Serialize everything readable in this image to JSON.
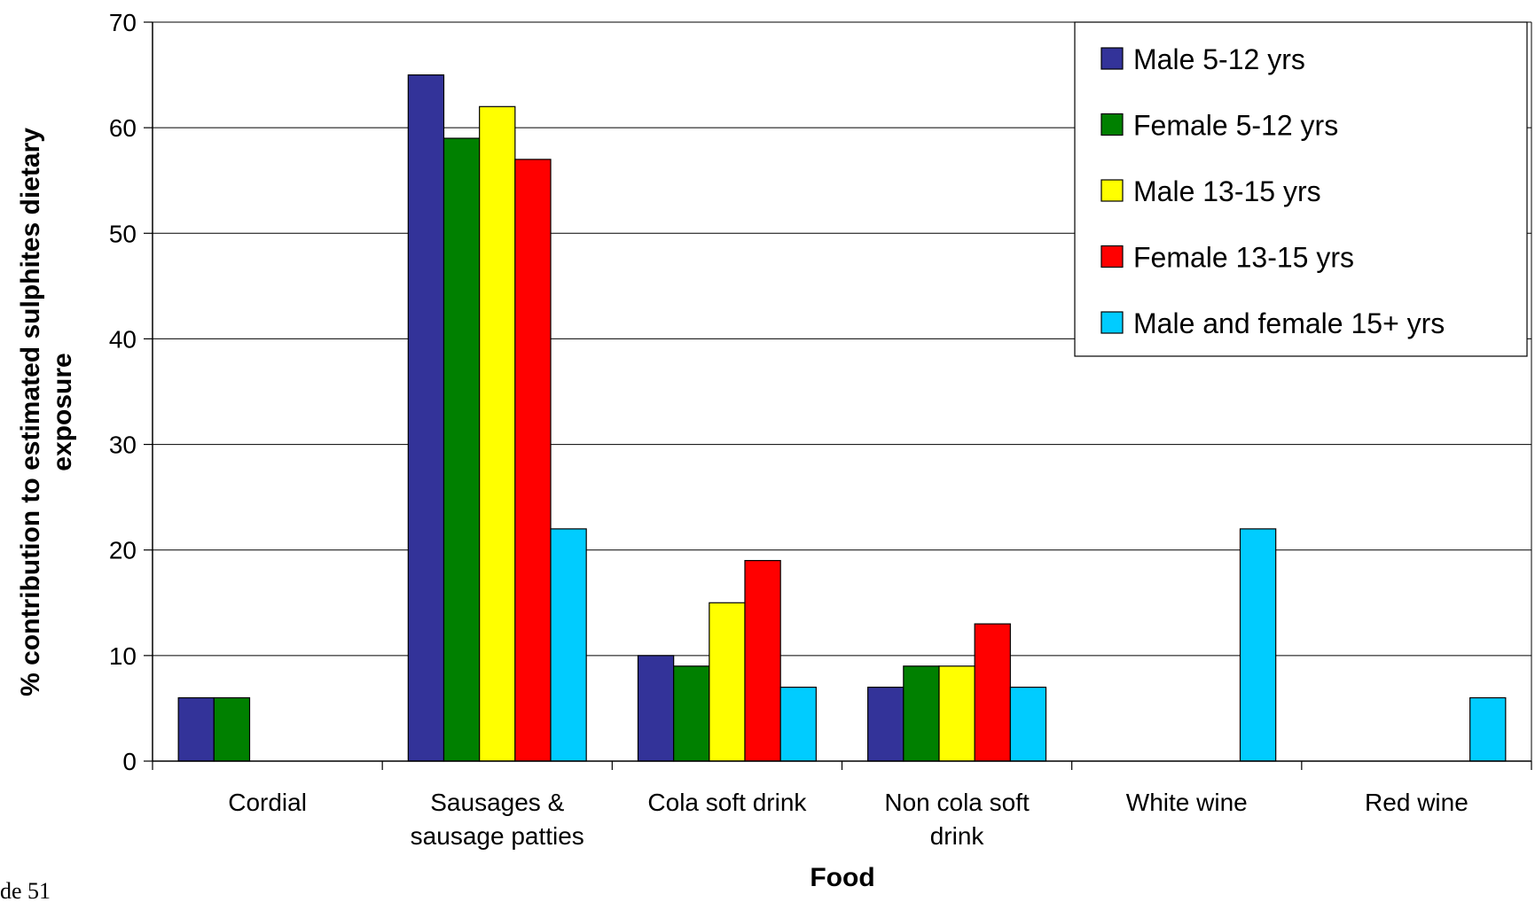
{
  "chart_data": {
    "type": "bar",
    "xlabel": "Food",
    "ylabel_lines": [
      "% contribution to estimated sulphites dietary",
      "exposure"
    ],
    "ylim": [
      0,
      70
    ],
    "yticks": [
      0,
      10,
      20,
      30,
      40,
      50,
      60,
      70
    ],
    "categories": [
      [
        "Cordial"
      ],
      [
        "Sausages &",
        "sausage patties"
      ],
      [
        "Cola soft drink"
      ],
      [
        "Non cola soft",
        "drink"
      ],
      [
        "White wine"
      ],
      [
        "Red wine"
      ]
    ],
    "series": [
      {
        "name": "Male 5-12 yrs",
        "color": "#333399",
        "values": [
          6,
          65,
          10,
          7,
          0,
          0
        ]
      },
      {
        "name": "Female 5-12 yrs",
        "color": "#008000",
        "values": [
          6,
          59,
          9,
          9,
          0,
          0
        ]
      },
      {
        "name": "Male 13-15 yrs",
        "color": "#ffff00",
        "values": [
          0,
          62,
          15,
          9,
          0,
          0
        ]
      },
      {
        "name": "Female 13-15 yrs",
        "color": "#ff0000",
        "values": [
          0,
          57,
          19,
          13,
          0,
          0
        ]
      },
      {
        "name": "Male and female 15+ yrs",
        "color": "#00ccff",
        "values": [
          0,
          22,
          7,
          7,
          22,
          6
        ]
      }
    ],
    "grid": true,
    "legend_position": "top-right"
  },
  "slide_label": "de 51"
}
